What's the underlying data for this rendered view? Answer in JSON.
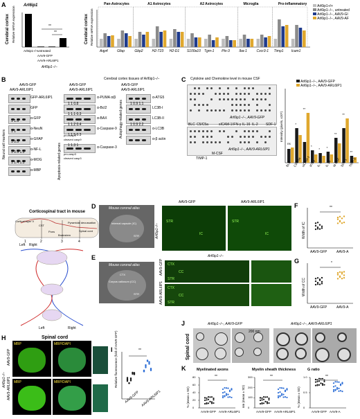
{
  "panelA": {
    "letter": "A",
    "small_chart": {
      "title": "Arl6ip1",
      "ylabel": "Relative mRNA expression",
      "ylabel_group": "Cerebral cortex",
      "groups": [
        "Arl6ip1+/+",
        "untreated",
        "AAV9-GFP",
        "AAV9-ARL6IP1"
      ],
      "group_label": "Arl6ip1−/−",
      "values": [
        1.0,
        0.02,
        0.02,
        0.28
      ],
      "sig": [
        "**",
        "**"
      ]
    },
    "big_chart": {
      "ylabel": "Relative mRNA expression",
      "ylabel_group": "Cerebral cortex",
      "sections": [
        "Pan-Astrocytes",
        "A1 Astrocytes",
        "A2 Astrocytes",
        "Microglia",
        "Pro-inflammatory"
      ],
      "genes": [
        "Aqp4",
        "Gfap",
        "Gbp2",
        "H2-T23",
        "H2-D1",
        "S100a10",
        "Tgm-1",
        "Ptx-3",
        "Iba-1",
        "Cxcr3-1",
        "Timp1",
        "Icam1"
      ],
      "legend": [
        "Arl6ip1+/+",
        "Arl6ip1−/−, untreated",
        "Arl6ip1−/−, AAV9-GI",
        "Arl6ip1−/−, AAV9-AF"
      ]
    }
  },
  "panelB": {
    "letter": "B",
    "title": "Cerebral cortex tissues of Arl6ip1−/−",
    "rows": [
      "AAV9-GFP",
      "AAV9-ARL6IP1"
    ],
    "col1": {
      "side_label": "Neural cell markers",
      "blots": [
        "GFP-ARL6IP1",
        "GFP",
        "α-GFP",
        "α-NeuN",
        "α-GFAP",
        "α-NF-L",
        "α-MOG",
        "α-MBP"
      ],
      "quant": [
        "1  1.6",
        "1  1",
        "1  0.5",
        "1  0.9  1.5",
        "1  1.4  1.5"
      ]
    },
    "col2": {
      "side_label": "Apoptosis-related genes",
      "blots": [
        "α-PUMA α/β",
        "α-Bcl2",
        "α-BAX",
        "α-Caspase-9",
        "pro-casp9",
        "cleaved casp9",
        "α-Caspase-3",
        "pro-casp3",
        "cleaved casp3"
      ],
      "quant": [
        "1  1  0.8",
        "1  1.1  0.3",
        "1  1.2  0.4",
        "1  1.5  0.3",
        "1  1.3  1"
      ]
    },
    "col3": {
      "side_label": "Autophagy-related genes",
      "blots": [
        "α-ATG5",
        "LC3B-I",
        "LC3B-II",
        "α-LC3B",
        "α-β actin"
      ],
      "quant": [
        "1  0.9  1.1",
        "1  0.9  2.2"
      ]
    }
  },
  "panelC": {
    "letter": "C",
    "title": "Cytokine and Chemokine level in mouse CSF",
    "array_labels_top": [
      "BLC",
      "C5/C5a",
      "sICAM-1",
      "IFN-γ",
      "IL-16",
      "IL-2",
      "SDF-1"
    ],
    "array_labels_bottom": [
      "TIMP-1",
      "M-CSF"
    ],
    "array_tags": [
      "Arl6ip1−/−, AAV9-GFP",
      "Arl6ip1−/−, AAV9-ARL6IP1"
    ],
    "chart": {
      "type": "bar",
      "ylabel": "Intensity (pixels, x10⁵)",
      "legend": [
        "Arl6ip1−/−, AAV9-GFP",
        "Arl6ip1−/−, AAV9-ARL6IP1"
      ],
      "categories": [
        "BLC",
        "C5/C5a",
        "sICAM-1",
        "IFN-γ",
        "IL-1",
        "IL-16",
        "M-CSF",
        "SDF-1",
        "TIMP-1"
      ],
      "sig": [
        "ns",
        "*",
        "**",
        "*",
        "*",
        "*",
        "**",
        "**",
        "**"
      ]
    }
  },
  "panelD": {
    "letter": "D",
    "atlas_title": "Mouse coronal atlas",
    "atlas_labels": [
      "Internal capsule (IC)",
      "STR"
    ],
    "group_label": "Arl6ip1−/−",
    "images": [
      {
        "title": "AAV9-GFP",
        "tags": [
          "STR",
          "IC"
        ]
      },
      {
        "title": "AAV9-ARL6IP1",
        "tags": [
          "STR",
          "IC"
        ]
      }
    ]
  },
  "panelE": {
    "letter": "E",
    "atlas_title": "Mouse coronal atlas",
    "atlas_labels": [
      "CTX",
      "Corpus callosum (CC)",
      "STR"
    ],
    "group_label": "Arl6ip1−/−",
    "rows": [
      "AAV9-GFP",
      "AAV9-ARL6IP1"
    ],
    "tags": [
      "CTX",
      "CC",
      "STR"
    ]
  },
  "panelF": {
    "letter": "F",
    "ylabel": "Width of IC",
    "categories": [
      "AAV9-GFP",
      "AAV9-A"
    ],
    "sig": "**"
  },
  "panelG": {
    "letter": "G",
    "ylabel": "Width of CC",
    "categories": [
      "AAV9-GFP",
      "AAV9-A"
    ],
    "sig": "*"
  },
  "corticospinal": {
    "title": "Corticospinal tract in mouse",
    "labels": [
      "Cortical layer V",
      "Pons",
      "Pyramidal decussation",
      "Spinal cord",
      "CST",
      "Brainstem"
    ],
    "numbers": [
      "1",
      "2",
      "3",
      "4"
    ],
    "sides": [
      "Left",
      "Right"
    ]
  },
  "panelH": {
    "letter": "H",
    "title": "Spinal cord",
    "group_label": "Arl6ip1−/−",
    "rows": [
      "AAV9-GFP",
      "AAV9-ARL6IP1"
    ],
    "cols": [
      "MBP",
      "MBP/DAPI"
    ]
  },
  "panelI": {
    "letter": "I",
    "ylabel": "Relative fluorescence (fold of AAV9-GFP)",
    "categories": [
      "AAV9-GFP",
      "AAV9-ARL6IP1"
    ],
    "sig": "**"
  },
  "panelJ": {
    "letter": "J",
    "side": "Spinal cord",
    "titles": [
      "Arl6ip1−/−, AAV9-GFP",
      "Arl6ip1−/−, AAV9-ARL6IP1"
    ],
    "scale": "200 nm"
  },
  "panelK": {
    "letter": "K",
    "charts": [
      {
        "title": "Myelinated axons",
        "ylabel": "% (mean ± SD)",
        "categories": [
          "AAV9-GFP",
          "AAV9-ARL6IP1"
        ],
        "sig": "**",
        "yticks": [
          "0",
          "20",
          "40",
          "60",
          "80"
        ]
      },
      {
        "title": "Myelin sheath thickness",
        "ylabel": "nm (mean ± SD)",
        "categories": [
          "AAV9-GFP",
          "AAV9-ARL6IP1"
        ],
        "sig": "**",
        "yticks": [
          "0",
          "100",
          "200",
          "300"
        ]
      },
      {
        "title": "G ratio",
        "ylabel": "% (mean ± SD)",
        "categories": [
          "AAV9-GFP",
          "AAV9-A"
        ],
        "sig": "**",
        "yticks": [
          "0",
          "0.5",
          "1.0"
        ]
      }
    ]
  },
  "colors": {
    "wt": "#bdbdbd",
    "untreated": "#8a8a8a",
    "gfp": "#1f3b8c",
    "arl": "#e0a82e",
    "green": "#3fbf1f"
  }
}
